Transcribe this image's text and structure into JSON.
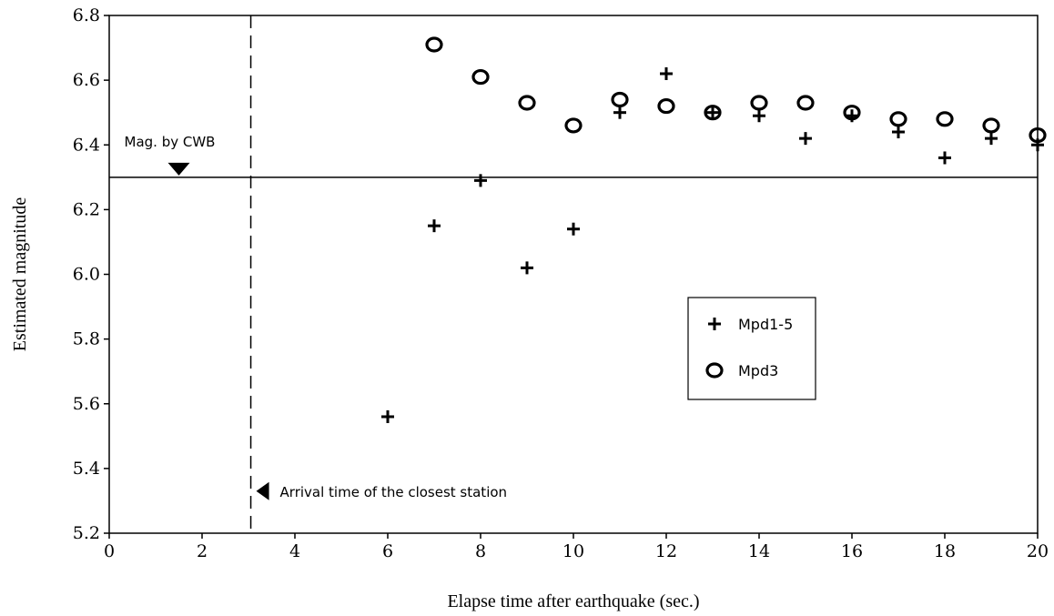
{
  "chart_data": {
    "type": "scatter",
    "title": "",
    "xlabel": "Elapse time after earthquake (sec.)",
    "ylabel": "Estimated magnitude",
    "xlim": [
      0,
      20
    ],
    "ylim": [
      5.2,
      6.8
    ],
    "xticks": [
      "0",
      "2",
      "4",
      "6",
      "8",
      "10",
      "12",
      "14",
      "16",
      "18",
      "20"
    ],
    "yticks": [
      "5.2",
      "5.4",
      "5.6",
      "5.8",
      "6.0",
      "6.2",
      "6.4",
      "6.6",
      "6.8"
    ],
    "grid": false,
    "legend_position": "center-right",
    "series": [
      {
        "name": "Mpd1-5",
        "marker": "plus",
        "x": [
          6,
          7,
          8,
          9,
          10,
          11,
          12,
          13,
          14,
          15,
          16,
          17,
          18,
          19,
          20
        ],
        "y": [
          5.56,
          6.15,
          6.29,
          6.02,
          6.14,
          6.5,
          6.62,
          6.5,
          6.49,
          6.42,
          6.49,
          6.44,
          6.36,
          6.42,
          6.4
        ]
      },
      {
        "name": "Mpd3",
        "marker": "circle",
        "x": [
          7,
          8,
          9,
          10,
          11,
          12,
          13,
          14,
          15,
          16,
          17,
          18,
          19,
          20
        ],
        "y": [
          6.71,
          6.61,
          6.53,
          6.46,
          6.54,
          6.52,
          6.5,
          6.53,
          6.53,
          6.5,
          6.48,
          6.48,
          6.46,
          6.43
        ]
      }
    ],
    "reference_line": {
      "y": 6.3
    },
    "vertical_line": {
      "x": 3.05
    },
    "annotations": {
      "cwb_label": "Mag. by CWB",
      "cwb_marker_x": 1.5,
      "arrival_label": "Arrival time of the closest station",
      "arrival_marker_y": 5.33
    }
  }
}
